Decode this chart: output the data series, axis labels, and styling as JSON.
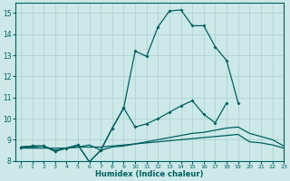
{
  "xlabel": "Humidex (Indice chaleur)",
  "background_color": "#cce8e8",
  "grid_color": "#aacfcf",
  "line_color": "#006060",
  "xlim": [
    -0.5,
    23
  ],
  "ylim": [
    8,
    15.5
  ],
  "yticks": [
    8,
    9,
    10,
    11,
    12,
    13,
    14,
    15
  ],
  "xticks": [
    0,
    1,
    2,
    3,
    4,
    5,
    6,
    7,
    8,
    9,
    10,
    11,
    12,
    13,
    14,
    15,
    16,
    17,
    18,
    19,
    20,
    21,
    22,
    23
  ],
  "series": [
    {
      "x": [
        0,
        1,
        2,
        3,
        4,
        5,
        6,
        7,
        8,
        9,
        10,
        11,
        12,
        13,
        14,
        15,
        16,
        17,
        18,
        19,
        20,
        21,
        22,
        23
      ],
      "y": [
        8.6,
        8.6,
        8.6,
        8.6,
        8.6,
        8.65,
        8.65,
        8.65,
        8.7,
        8.75,
        8.8,
        8.85,
        8.9,
        8.95,
        9.0,
        9.05,
        9.1,
        9.15,
        9.2,
        9.25,
        8.9,
        8.85,
        8.75,
        8.6
      ],
      "marker": false,
      "lw": 0.9
    },
    {
      "x": [
        0,
        1,
        2,
        3,
        4,
        5,
        6,
        7,
        8,
        9,
        10,
        11,
        12,
        13,
        14,
        15,
        16,
        17,
        18,
        19,
        20,
        21,
        22,
        23
      ],
      "y": [
        8.65,
        8.65,
        8.7,
        8.5,
        8.6,
        8.65,
        8.75,
        8.5,
        8.65,
        8.7,
        8.8,
        8.9,
        9.0,
        9.1,
        9.2,
        9.3,
        9.35,
        9.45,
        9.55,
        9.6,
        9.3,
        9.15,
        9.0,
        8.7
      ],
      "marker": false,
      "lw": 0.9
    },
    {
      "x": [
        0,
        1,
        2,
        3,
        4,
        5,
        6,
        7,
        8,
        9,
        10,
        11,
        12,
        13,
        14,
        15,
        16,
        17,
        18,
        19,
        20,
        21,
        22,
        23
      ],
      "y": [
        8.65,
        8.7,
        8.7,
        8.45,
        8.6,
        8.75,
        7.95,
        8.5,
        9.55,
        10.5,
        9.6,
        9.75,
        10.0,
        10.3,
        10.6,
        10.85,
        10.2,
        9.8,
        10.75,
        null,
        null,
        null,
        null,
        null
      ],
      "marker": true,
      "lw": 0.9
    },
    {
      "x": [
        0,
        1,
        2,
        3,
        4,
        5,
        6,
        7,
        8,
        9,
        10,
        11,
        12,
        13,
        14,
        15,
        16,
        17,
        18,
        19,
        20,
        21,
        22,
        23
      ],
      "y": [
        8.65,
        8.7,
        8.7,
        8.45,
        8.6,
        8.75,
        7.95,
        8.5,
        9.55,
        10.5,
        13.2,
        12.95,
        14.35,
        15.1,
        15.15,
        14.4,
        14.4,
        13.4,
        12.75,
        10.75,
        null,
        null,
        null,
        null
      ],
      "marker": true,
      "lw": 0.9
    }
  ]
}
